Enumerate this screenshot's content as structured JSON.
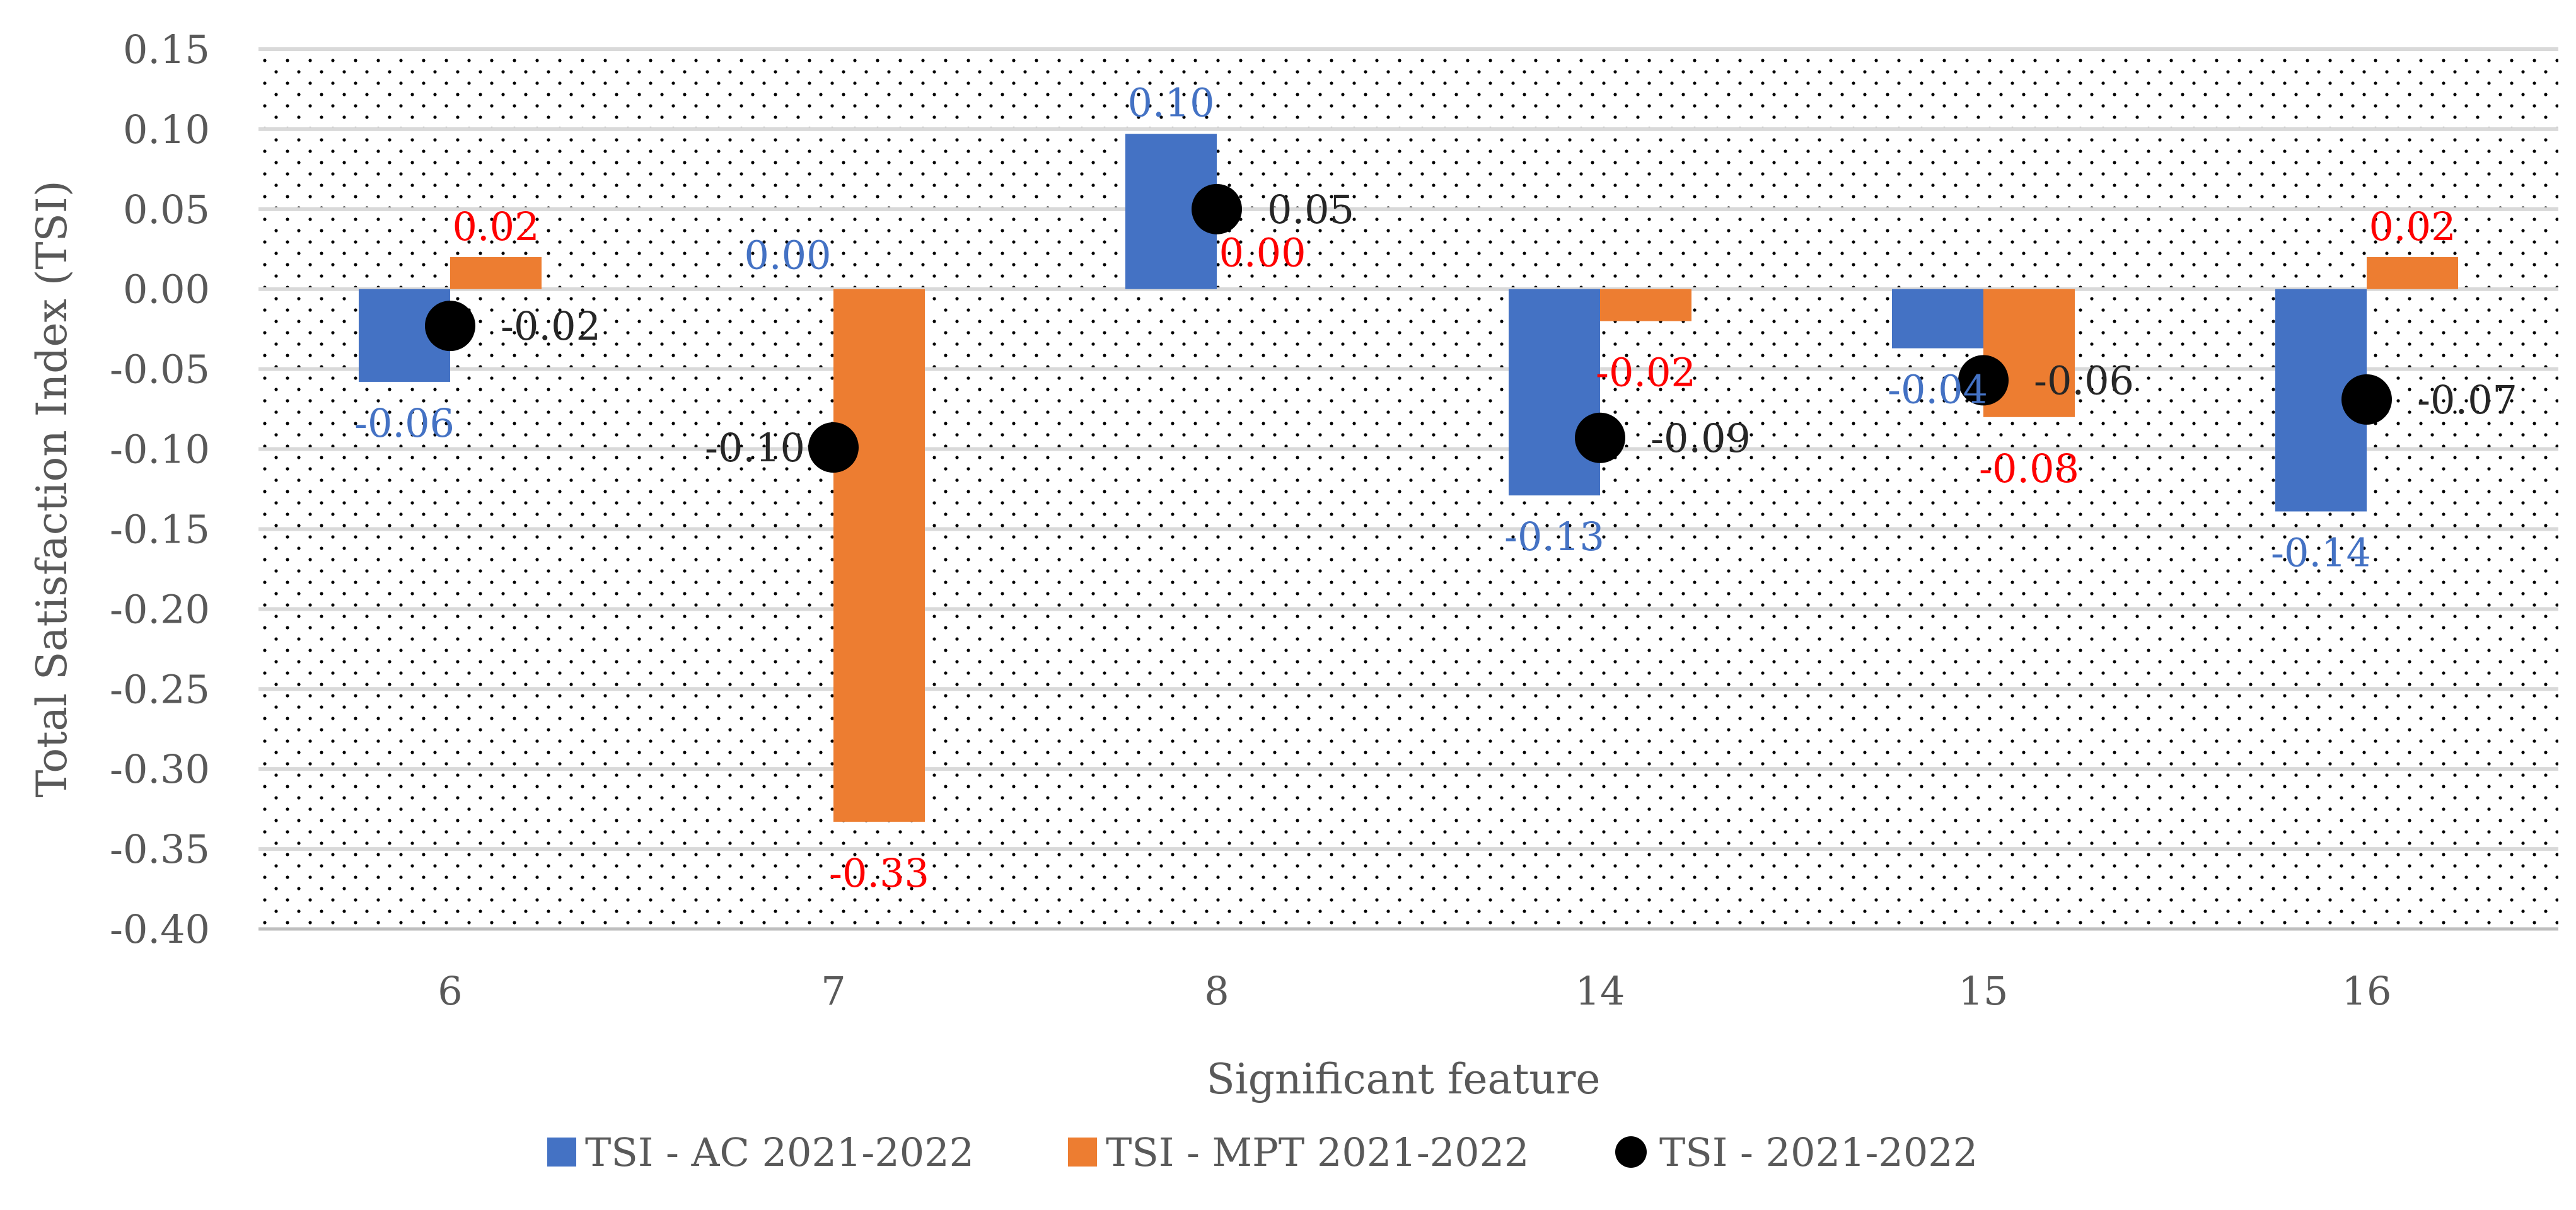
{
  "chart_data": {
    "type": "bar",
    "title": "",
    "xlabel": "Significant feature",
    "ylabel": "Total Satisfaction Index (TSI)",
    "ylim": [
      -0.4,
      0.15
    ],
    "ytick_step": 0.05,
    "yticks": [
      "0.15",
      "0.10",
      "0.05",
      "0.00",
      "-0.05",
      "-0.10",
      "-0.15",
      "-0.20",
      "-0.25",
      "-0.30",
      "-0.35",
      "-0.40"
    ],
    "grid": true,
    "legend": "bottom",
    "categories": [
      "6",
      "7",
      "8",
      "14",
      "15",
      "16"
    ],
    "series": [
      {
        "name": "TSI - AC 2021-2022",
        "kind": "bar",
        "color": "#4472C4",
        "label_color": "#4472C4",
        "values": [
          -0.058,
          0.0,
          0.097,
          -0.129,
          -0.037,
          -0.139
        ],
        "labels": [
          "-0.06",
          "0.00",
          "0.10",
          "-0.13",
          "-0.04",
          "-0.14"
        ]
      },
      {
        "name": "TSI - MPT 2021-2022",
        "kind": "bar",
        "color": "#ED7D31",
        "label_color": "#FF0000",
        "values": [
          0.02,
          -0.333,
          0.0,
          -0.02,
          -0.08,
          0.02
        ],
        "labels": [
          "0.02",
          "-0.33",
          "0.00",
          "-0.02",
          "-0.08",
          "0.02"
        ]
      },
      {
        "name": "TSI - 2021-2022",
        "kind": "point",
        "color": "#000000",
        "label_color": "#262626",
        "values": [
          -0.023,
          -0.099,
          0.05,
          -0.093,
          -0.057,
          -0.069
        ],
        "labels": [
          "-0.02",
          "-0.10",
          "0.05",
          "-0.09",
          "-0.06",
          "-0.07"
        ]
      }
    ]
  }
}
